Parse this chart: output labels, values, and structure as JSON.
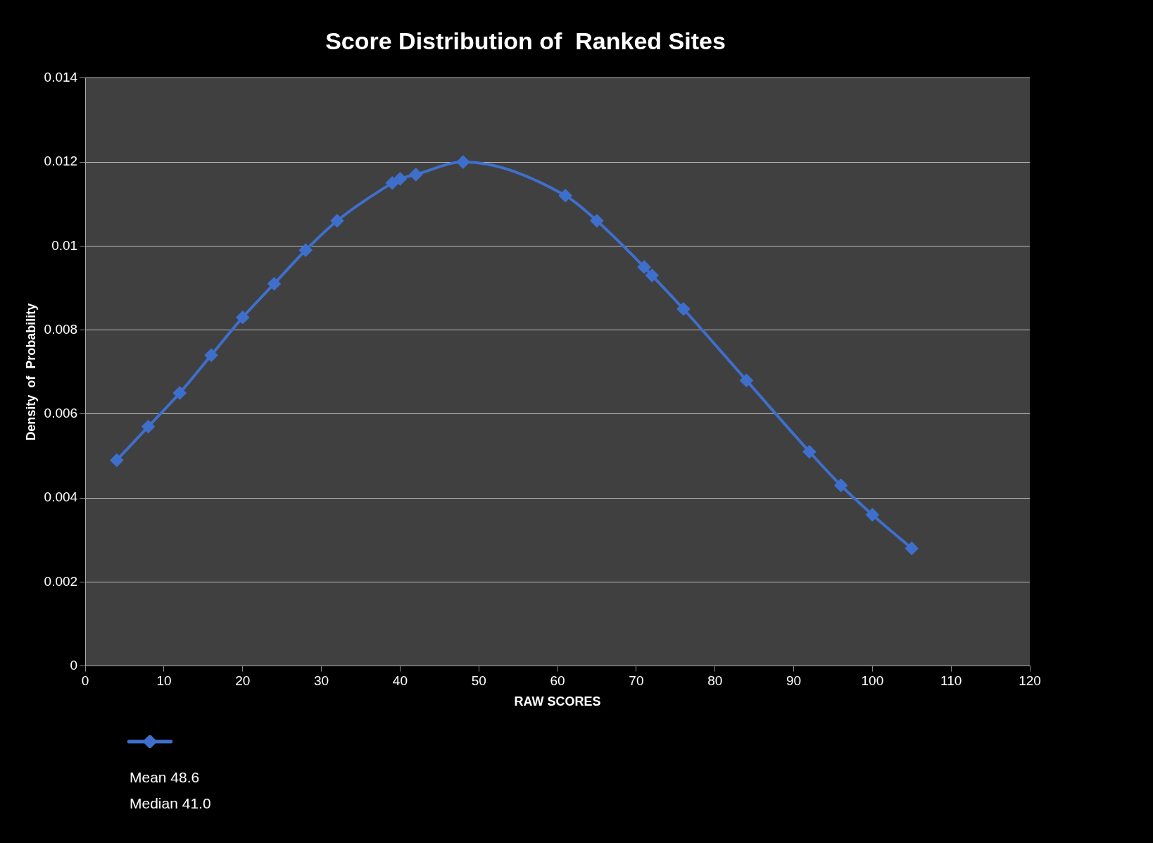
{
  "chart_data": {
    "type": "line",
    "title": "Score Distribution of  Ranked Sites",
    "xlabel": "RAW SCORES",
    "ylabel": "Density  of  Probability",
    "x": [
      4,
      8,
      12,
      16,
      20,
      24,
      28,
      32,
      39,
      40,
      42,
      48,
      61,
      65,
      71,
      72,
      76,
      84,
      92,
      96,
      100,
      105
    ],
    "series": [
      {
        "color": "#3f6fcc",
        "values": [
          0.0049,
          0.0057,
          0.0065,
          0.0074,
          0.0083,
          0.0091,
          0.0099,
          0.0106,
          0.0115,
          0.0116,
          0.0117,
          0.012,
          0.0112,
          0.0106,
          0.0095,
          0.0093,
          0.0085,
          0.0068,
          0.0051,
          0.0043,
          0.0036,
          0.0028
        ]
      }
    ],
    "xlim": [
      0,
      120
    ],
    "xticks": [
      0,
      10,
      20,
      30,
      40,
      50,
      60,
      70,
      80,
      90,
      100,
      110,
      120
    ],
    "ylim": [
      0,
      0.014
    ],
    "yticks": [
      0,
      0.002,
      0.004,
      0.006,
      0.008,
      0.01,
      0.012,
      0.014
    ],
    "grid": "y",
    "marker": "diamond",
    "line_style": "solid",
    "annotations": [
      "Mean 48.6",
      "Median 41.0"
    ]
  }
}
